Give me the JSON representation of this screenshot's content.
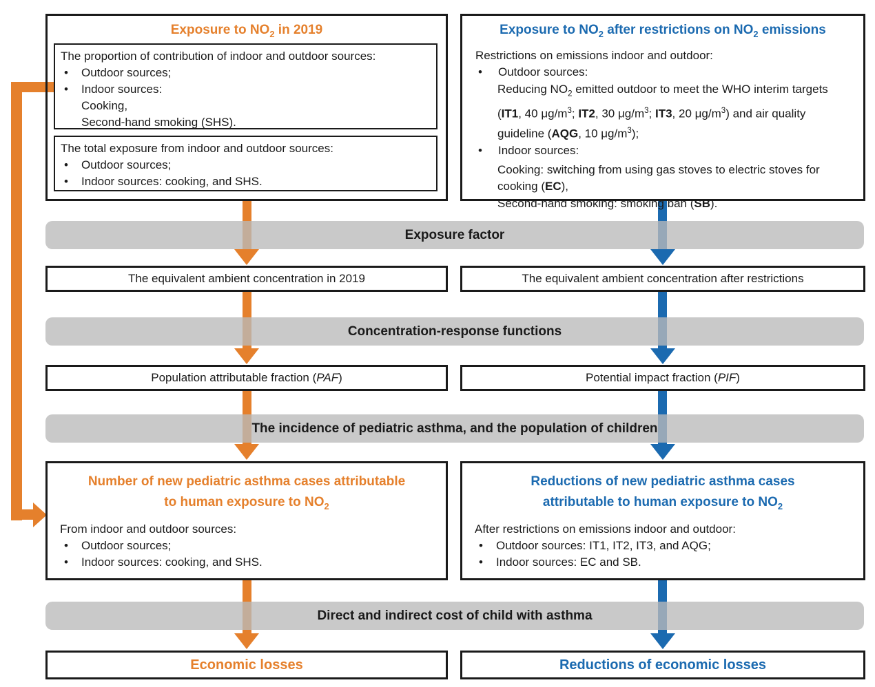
{
  "meta": {
    "bullet_char": "•"
  },
  "colors": {
    "orange": "#E5802C",
    "blue": "#1B6AB0",
    "band_gray": "#C9C9C9",
    "border": "#1A1A1A"
  },
  "bands": [
    {
      "label": "Exposure factor"
    },
    {
      "label": "Concentration-response functions"
    },
    {
      "label": "The incidence of pediatric asthma, and the population of children"
    },
    {
      "label": "Direct and indirect cost of child with asthma"
    }
  ],
  "left": {
    "top_box": {
      "title": [
        {
          "t": "Exposure to NO"
        },
        {
          "t": "2",
          "sub": true
        },
        {
          "t": " in 2019"
        }
      ],
      "proportion_box": {
        "heading": "The proportion of contribution of indoor and outdoor sources:",
        "bullets": [
          "Outdoor sources;",
          "Indoor sources:"
        ],
        "indent_lines": [
          "Cooking,",
          "Second-hand smoking (SHS)."
        ]
      },
      "total_box": {
        "heading": "The total exposure from indoor and outdoor sources:",
        "bullets": [
          "Outdoor sources;",
          "Indoor sources: cooking, and SHS."
        ]
      }
    },
    "concentration_box": {
      "label": "The equivalent ambient concentration in 2019"
    },
    "fraction_box": {
      "label": [
        {
          "t": "Population attributable fraction ("
        },
        {
          "t": "PAF",
          "i": true
        },
        {
          "t": ")"
        }
      ]
    },
    "cases_box": {
      "title_line1": [
        {
          "t": "Number of new pediatric asthma cases attributable"
        }
      ],
      "title_line2": [
        {
          "t": "to human exposure to NO"
        },
        {
          "t": "2",
          "sub": true
        }
      ],
      "heading": "From indoor and outdoor sources:",
      "bullets": [
        "Outdoor sources;",
        "Indoor sources: cooking, and SHS."
      ]
    },
    "economic_box": {
      "label": "Economic losses"
    }
  },
  "right": {
    "top_box": {
      "title": [
        {
          "t": "Exposure to NO"
        },
        {
          "t": "2",
          "sub": true
        },
        {
          "t": " after restrictions on NO"
        },
        {
          "t": "2",
          "sub": true
        },
        {
          "t": " emissions"
        }
      ],
      "heading": "Restrictions on emissions indoor and outdoor:",
      "outdoor_bullet": "Outdoor sources:",
      "outdoor_detail": [
        {
          "t": "Reducing NO"
        },
        {
          "t": "2",
          "sub": true
        },
        {
          "t": " emitted outdoor to meet the WHO interim targets ("
        },
        {
          "t": "IT1",
          "b": true
        },
        {
          "t": ", 40 μg/m"
        },
        {
          "t": "3",
          "sup": true
        },
        {
          "t": "; "
        },
        {
          "t": "IT2",
          "b": true
        },
        {
          "t": ", 30 μg/m"
        },
        {
          "t": "3",
          "sup": true
        },
        {
          "t": "; "
        },
        {
          "t": "IT3",
          "b": true
        },
        {
          "t": ", 20 μg/m"
        },
        {
          "t": "3",
          "sup": true
        },
        {
          "t": ") and air quality guideline ("
        },
        {
          "t": "AQG",
          "b": true
        },
        {
          "t": ", 10 μg/m"
        },
        {
          "t": "3",
          "sup": true
        },
        {
          "t": ");"
        }
      ],
      "indoor_bullet": "Indoor sources:",
      "cooking_detail": [
        {
          "t": "Cooking: switching from using gas stoves to electric stoves for cooking ("
        },
        {
          "t": "EC",
          "b": true
        },
        {
          "t": "),"
        }
      ],
      "shs_detail": [
        {
          "t": "Second-hand smoking: smoking ban ("
        },
        {
          "t": "SB",
          "b": true
        },
        {
          "t": ")."
        }
      ]
    },
    "concentration_box": {
      "label": "The equivalent ambient concentration after restrictions"
    },
    "fraction_box": {
      "label": [
        {
          "t": "Potential impact fraction ("
        },
        {
          "t": "PIF",
          "i": true
        },
        {
          "t": ")"
        }
      ]
    },
    "cases_box": {
      "title_line1": [
        {
          "t": "Reductions of new pediatric asthma cases"
        }
      ],
      "title_line2": [
        {
          "t": "attributable to human exposure to NO"
        },
        {
          "t": "2",
          "sub": true
        }
      ],
      "heading": "After restrictions on emissions indoor and outdoor:",
      "bullets": [
        "Outdoor sources: IT1, IT2, IT3, and AQG;",
        "Indoor sources: EC and SB."
      ]
    },
    "economic_box": {
      "label": "Reductions of economic losses"
    }
  }
}
